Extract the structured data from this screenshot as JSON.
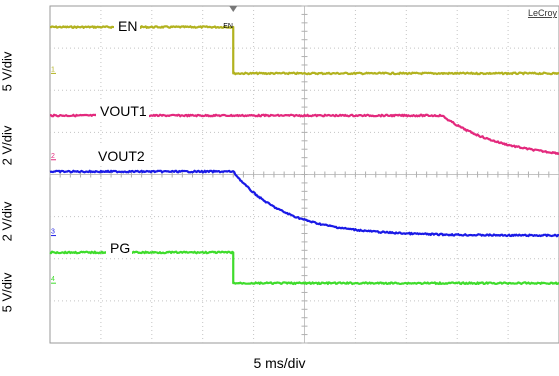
{
  "chart_data": {
    "type": "line",
    "brand": "LeCroy",
    "xlabel": "5 ms/div",
    "x_divisions": 10,
    "y_divisions": 8,
    "trigger_ms": 18.0,
    "series": [
      {
        "name": "EN",
        "marker": "EN",
        "ground_label": "1",
        "color": "#b2b21f",
        "scale": "5 V/div",
        "high_div": 7.5,
        "low_div": 6.4,
        "edge": "step",
        "edge_ms": 18.0
      },
      {
        "name": "VOUT1",
        "ground_label": "2",
        "color": "#e3297d",
        "scale": "2 V/div",
        "high_div": 5.4,
        "low_div": 4.35,
        "edge": "decay",
        "edge_ms": 38.5,
        "tau_ms": 6.0
      },
      {
        "name": "VOUT2",
        "ground_label": "3",
        "color": "#1a1ae6",
        "scale": "2 V/div",
        "high_div": 4.07,
        "low_div": 2.55,
        "edge": "decay",
        "edge_ms": 18.0,
        "tau_ms": 5.0
      },
      {
        "name": "PG",
        "ground_label": "4",
        "color": "#3fdc2c",
        "scale": "5 V/div",
        "high_div": 2.15,
        "low_div": 1.42,
        "edge": "step",
        "edge_ms": 18.0
      }
    ],
    "grid": true
  }
}
